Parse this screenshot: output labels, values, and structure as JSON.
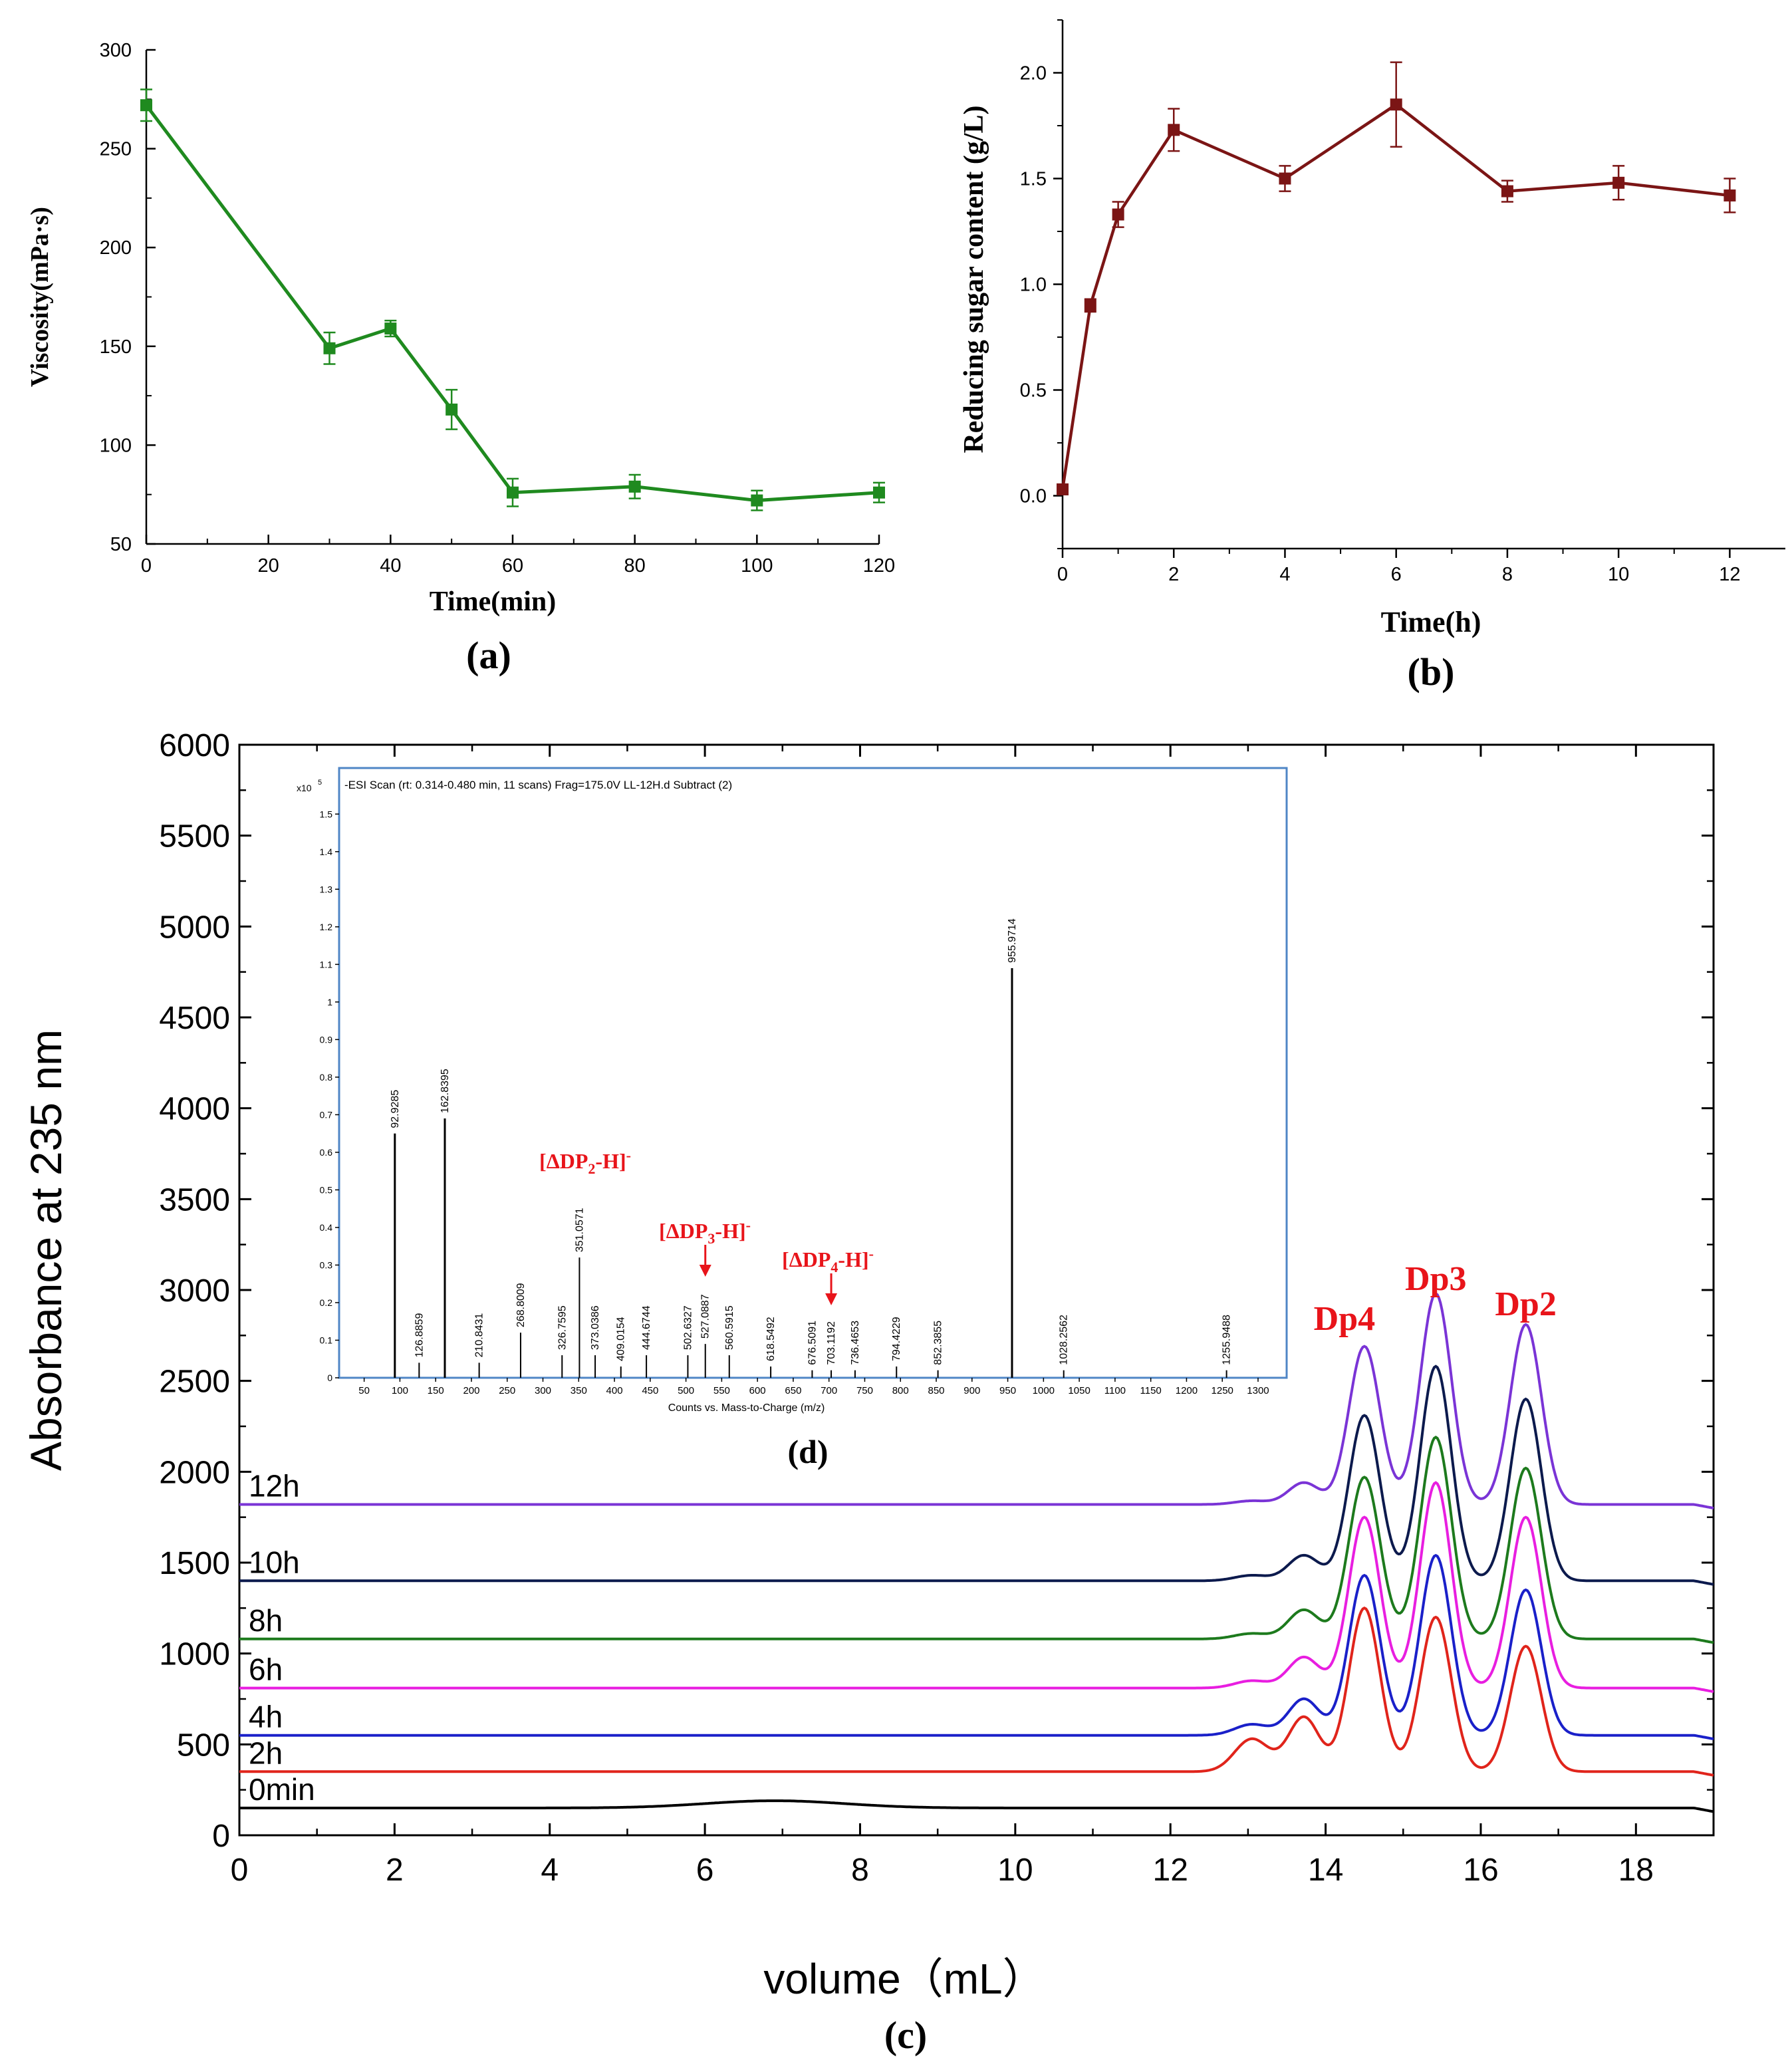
{
  "colors": {
    "a_series": "#1f8a1f",
    "b_series": "#7b1515",
    "annotation_red": "#e8141a",
    "inset_frame": "#4f86c6",
    "trace_0min": "#000000",
    "trace_2h": "#e0241b",
    "trace_4h": "#1a20c9",
    "trace_6h": "#e81ee0",
    "trace_8h": "#1d7a1d",
    "trace_10h": "#0c1a4d",
    "trace_12h": "#7a34d6"
  },
  "chart_data": [
    {
      "id": "a",
      "type": "line",
      "panel_label": "(a)",
      "xlabel": "Time(min)",
      "ylabel": "Viscosity(mPa·s)",
      "xlim": [
        0,
        120
      ],
      "ylim": [
        50,
        300
      ],
      "xticks": [
        "0",
        "20",
        "40",
        "60",
        "80",
        "100",
        "120"
      ],
      "yticks": [
        "50",
        "100",
        "150",
        "200",
        "250",
        "300"
      ],
      "x": [
        0,
        30,
        40,
        50,
        60,
        80,
        100,
        120
      ],
      "y": [
        272,
        149,
        159,
        118,
        76,
        79,
        72,
        76
      ],
      "err": [
        8,
        8,
        4,
        10,
        7,
        6,
        5,
        5
      ]
    },
    {
      "id": "b",
      "type": "line",
      "panel_label": "(b)",
      "xlabel": "Time(h)",
      "ylabel": "Reducing sugar content (g/L)",
      "xlim": [
        0,
        13
      ],
      "ylim": [
        -0.25,
        2.25
      ],
      "xticks": [
        "0",
        "2",
        "4",
        "6",
        "8",
        "10",
        "12"
      ],
      "yticks": [
        "0.0",
        "0.5",
        "1.0",
        "1.5",
        "2.0"
      ],
      "x": [
        0,
        0.5,
        1,
        2,
        4,
        6,
        8,
        10,
        12
      ],
      "y": [
        0.03,
        0.9,
        1.33,
        1.73,
        1.5,
        1.85,
        1.44,
        1.48,
        1.42
      ],
      "err": [
        0.02,
        0.03,
        0.06,
        0.1,
        0.06,
        0.2,
        0.05,
        0.08,
        0.08
      ]
    },
    {
      "id": "c",
      "type": "line",
      "panel_label": "(c)",
      "xlabel": "volume（mL）",
      "ylabel": "Absorbance at 235 nm",
      "xlim": [
        0,
        19
      ],
      "ylim": [
        0,
        6000
      ],
      "xticks": [
        "0",
        "2",
        "4",
        "6",
        "8",
        "10",
        "12",
        "14",
        "16",
        "18"
      ],
      "yticks": [
        "0",
        "500",
        "1000",
        "1500",
        "2000",
        "2500",
        "3000",
        "3500",
        "4000",
        "4500",
        "5000",
        "5500",
        "6000"
      ],
      "series": [
        {
          "name": "0min",
          "baseline": 150,
          "hump": 40,
          "s0": 0,
          "s1": 0,
          "dp4": 0,
          "dp3": 0,
          "dp2": 0
        },
        {
          "name": "2h",
          "baseline": 350,
          "hump": 0,
          "s0": 180,
          "s1": 300,
          "dp4": 900,
          "dp3": 850,
          "dp2": 690
        },
        {
          "name": "4h",
          "baseline": 550,
          "hump": 0,
          "s0": 60,
          "s1": 200,
          "dp4": 880,
          "dp3": 990,
          "dp2": 800
        },
        {
          "name": "6h",
          "baseline": 810,
          "hump": 0,
          "s0": 40,
          "s1": 170,
          "dp4": 940,
          "dp3": 1130,
          "dp2": 940
        },
        {
          "name": "8h",
          "baseline": 1080,
          "hump": 0,
          "s0": 30,
          "s1": 160,
          "dp4": 890,
          "dp3": 1110,
          "dp2": 940
        },
        {
          "name": "10h",
          "baseline": 1400,
          "hump": 0,
          "s0": 30,
          "s1": 140,
          "dp4": 910,
          "dp3": 1180,
          "dp2": 1000
        },
        {
          "name": "12h",
          "baseline": 1820,
          "hump": 0,
          "s0": 20,
          "s1": 120,
          "dp4": 870,
          "dp3": 1160,
          "dp2": 990
        }
      ],
      "peaks": [
        {
          "label": "Dp4",
          "x": 14.5
        },
        {
          "label": "Dp3",
          "x": 15.42
        },
        {
          "label": "Dp2",
          "x": 16.58
        }
      ]
    },
    {
      "id": "d",
      "type": "bar",
      "panel_label": "(d)",
      "title": "-ESI Scan (rt: 0.314-0.480 min, 11 scans) Frag=175.0V LL-12H.d  Subtract (2)",
      "xlabel": "Counts vs. Mass-to-Charge (m/z)",
      "y_multiplier": "x10",
      "y_exponent": "5",
      "xlim": [
        15,
        1340
      ],
      "ylim": [
        0,
        1.55
      ],
      "xticks": [
        "50",
        "100",
        "150",
        "200",
        "250",
        "300",
        "350",
        "400",
        "450",
        "500",
        "550",
        "600",
        "650",
        "700",
        "750",
        "800",
        "850",
        "900",
        "950",
        "1000",
        "1050",
        "1100",
        "1150",
        "1200",
        "1250",
        "1300"
      ],
      "yticks": [
        "0",
        "0.1",
        "0.2",
        "0.3",
        "0.4",
        "0.5",
        "0.6",
        "0.7",
        "0.8",
        "0.9",
        "1",
        "1.1",
        "1.2",
        "1.3",
        "1.4",
        "1.5"
      ],
      "peaks": [
        {
          "mz": 92.9285,
          "label": "92.9285",
          "intensity": 0.65
        },
        {
          "mz": 126.8859,
          "label": "126.8859",
          "intensity": 0.04
        },
        {
          "mz": 162.8395,
          "label": "162.8395",
          "intensity": 0.69
        },
        {
          "mz": 210.8431,
          "label": "210.8431",
          "intensity": 0.04
        },
        {
          "mz": 268.8009,
          "label": "268.8009",
          "intensity": 0.12
        },
        {
          "mz": 326.7595,
          "label": "326.7595",
          "intensity": 0.06
        },
        {
          "mz": 351.0571,
          "label": "351.0571",
          "intensity": 0.32
        },
        {
          "mz": 373.0386,
          "label": "373.0386",
          "intensity": 0.06
        },
        {
          "mz": 409.0154,
          "label": "409.0154",
          "intensity": 0.03
        },
        {
          "mz": 444.6744,
          "label": "444.6744",
          "intensity": 0.06
        },
        {
          "mz": 502.6327,
          "label": "502.6327",
          "intensity": 0.06
        },
        {
          "mz": 527.0887,
          "label": "527.0887",
          "intensity": 0.09
        },
        {
          "mz": 560.5915,
          "label": "560.5915",
          "intensity": 0.06
        },
        {
          "mz": 618.5492,
          "label": "618.5492",
          "intensity": 0.03
        },
        {
          "mz": 676.5091,
          "label": "676.5091",
          "intensity": 0.02
        },
        {
          "mz": 703.1192,
          "label": "703.1192",
          "intensity": 0.02
        },
        {
          "mz": 736.4653,
          "label": "736.4653",
          "intensity": 0.02
        },
        {
          "mz": 794.4229,
          "label": "794.4229",
          "intensity": 0.03
        },
        {
          "mz": 852.3855,
          "label": "852.3855",
          "intensity": 0.02
        },
        {
          "mz": 955.9714,
          "label": "955.9714",
          "intensity": 1.09
        },
        {
          "mz": 1028.2562,
          "label": "1028.2562",
          "intensity": 0.02
        },
        {
          "mz": 1255.9488,
          "label": "1255.9488",
          "intensity": 0.02
        }
      ],
      "annotations": [
        {
          "base": "[ΔDP",
          "sub": "2",
          "rest": "-H]",
          "sup": "-",
          "mz": 351.0571
        },
        {
          "base": "[ΔDP",
          "sub": "3",
          "rest": "-H]",
          "sup": "-",
          "mz": 527.0887
        },
        {
          "base": "[ΔDP",
          "sub": "4",
          "rest": "-H]",
          "sup": "-",
          "mz": 703.1192
        }
      ]
    }
  ]
}
